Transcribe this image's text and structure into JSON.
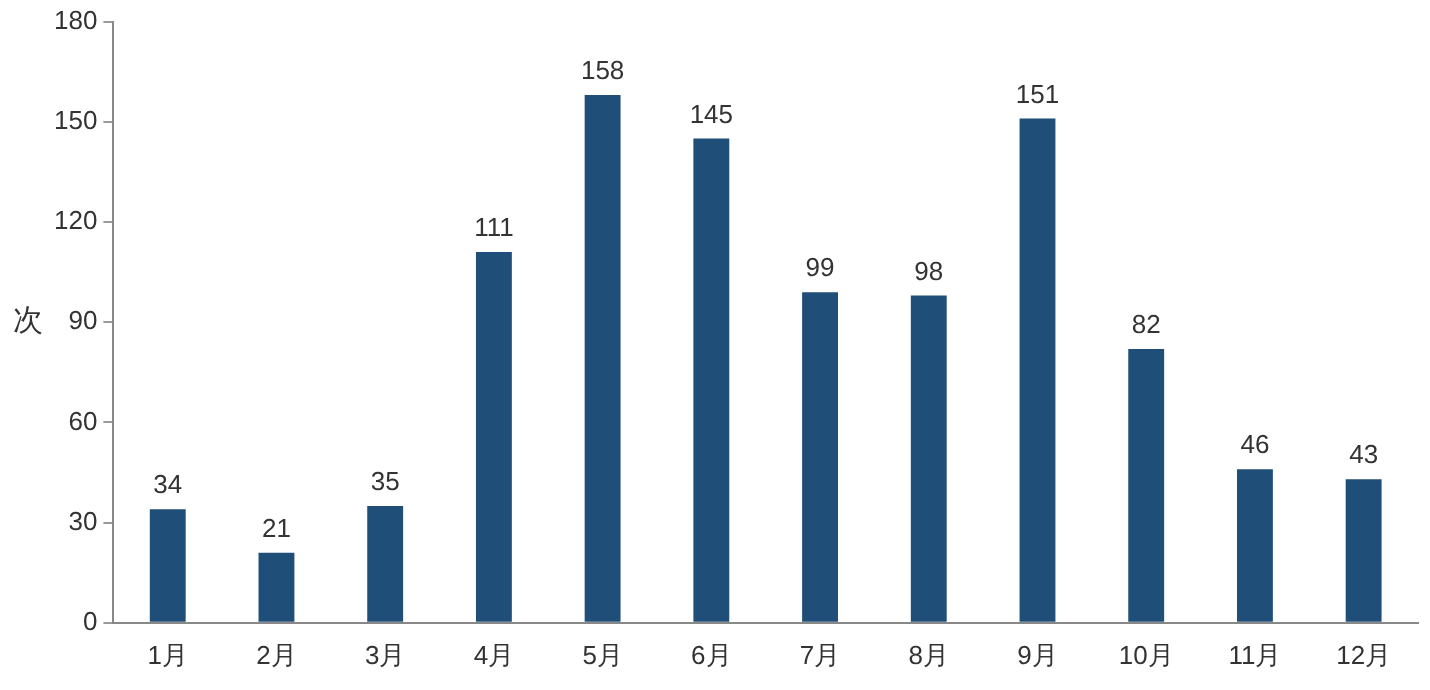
{
  "chart_data": {
    "type": "bar",
    "ylabel": "次",
    "categories": [
      "1月",
      "2月",
      "3月",
      "4月",
      "5月",
      "6月",
      "7月",
      "8月",
      "9月",
      "10月",
      "11月",
      "12月"
    ],
    "values": [
      34,
      21,
      35,
      111,
      158,
      145,
      99,
      98,
      151,
      82,
      46,
      43
    ],
    "color": "#1f4e79",
    "ylim": [
      0,
      180
    ],
    "yticks": [
      0,
      30,
      60,
      90,
      120,
      150,
      180
    ],
    "grid": false,
    "legend": false,
    "data_labels": true
  }
}
